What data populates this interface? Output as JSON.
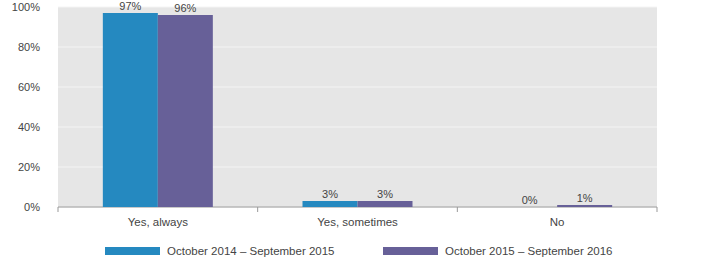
{
  "chart_data": {
    "type": "bar",
    "categories": [
      "Yes, always",
      "Yes, sometimes",
      "No"
    ],
    "series": [
      {
        "name": "October 2014 – September 2015",
        "color": "#2589c0",
        "values": [
          97,
          3,
          0
        ],
        "value_labels": [
          "97%",
          "3%",
          "0%"
        ]
      },
      {
        "name": "October 2015 – September 2016",
        "color": "#676098",
        "values": [
          96,
          3,
          1
        ],
        "value_labels": [
          "96%",
          "3%",
          "1%"
        ]
      }
    ],
    "ylim": [
      0,
      100
    ],
    "yticks": [
      {
        "value": 0,
        "label": "0%"
      },
      {
        "value": 20,
        "label": "20%"
      },
      {
        "value": 40,
        "label": "40%"
      },
      {
        "value": 60,
        "label": "60%"
      },
      {
        "value": 80,
        "label": "80%"
      },
      {
        "value": 100,
        "label": "100%"
      }
    ],
    "grid": true,
    "data_labels": true,
    "legend": "bottom"
  }
}
